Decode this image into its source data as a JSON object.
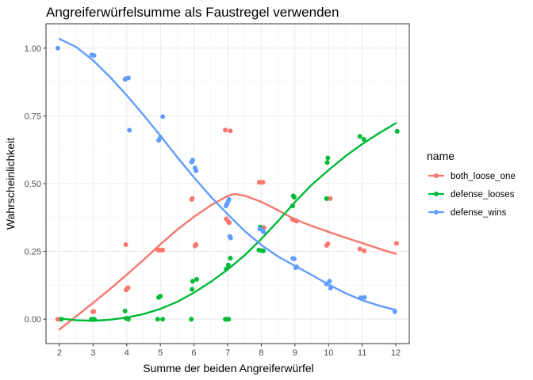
{
  "chart_data": {
    "type": "scatter",
    "title": "Angreiferwürfelsumme als Faustregel verwenden",
    "xlabel": "Summe der beiden Angreiferwürfel",
    "ylabel": "Wahrscheinlichkeit",
    "xlim": [
      1.6,
      12.4
    ],
    "ylim": [
      -0.09,
      1.09
    ],
    "x_ticks": [
      2,
      3,
      4,
      5,
      6,
      7,
      8,
      9,
      10,
      11,
      12
    ],
    "x_tick_labels": [
      "2",
      "3",
      "4",
      "5",
      "6",
      "7",
      "8",
      "9",
      "10",
      "11",
      "12"
    ],
    "y_ticks": [
      0.0,
      0.25,
      0.5,
      0.75,
      1.0
    ],
    "y_tick_labels": [
      "0.00",
      "0.25",
      "0.50",
      "0.75",
      "1.00"
    ],
    "grid": true,
    "theme": "bw",
    "legend": {
      "title": "name",
      "position": "right",
      "entries": [
        "both_loose_one",
        "defense_looses",
        "defense_wins"
      ]
    },
    "series": [
      {
        "name": "both_loose_one",
        "color": "#F8766D",
        "points": [
          [
            1.95,
            0.0
          ],
          [
            2.0,
            0.0
          ],
          [
            2.99,
            0.028
          ],
          [
            3.02,
            0.028
          ],
          [
            3.97,
            0.275
          ],
          [
            3.98,
            0.108
          ],
          [
            4.01,
            0.113
          ],
          [
            4.04,
            0.116
          ],
          [
            4.93,
            0.255
          ],
          [
            4.97,
            0.255
          ],
          [
            5.03,
            0.255
          ],
          [
            5.07,
            0.255
          ],
          [
            5.93,
            0.442
          ],
          [
            5.95,
            0.445
          ],
          [
            6.03,
            0.27
          ],
          [
            6.06,
            0.275
          ],
          [
            6.93,
            0.698
          ],
          [
            6.96,
            0.37
          ],
          [
            7.02,
            0.36
          ],
          [
            7.05,
            0.356
          ],
          [
            7.08,
            0.695
          ],
          [
            7.94,
            0.505
          ],
          [
            7.97,
            0.505
          ],
          [
            8.05,
            0.505
          ],
          [
            8.08,
            0.338
          ],
          [
            8.93,
            0.368
          ],
          [
            8.96,
            0.366
          ],
          [
            9.02,
            0.364
          ],
          [
            9.05,
            0.362
          ],
          [
            9.94,
            0.272
          ],
          [
            9.98,
            0.278
          ],
          [
            10.05,
            0.445
          ],
          [
            10.93,
            0.259
          ],
          [
            11.06,
            0.252
          ],
          [
            12.02,
            0.28
          ]
        ],
        "trend": [
          [
            2.0,
            -0.038
          ],
          [
            2.5,
            0.011
          ],
          [
            3.0,
            0.06
          ],
          [
            3.5,
            0.111
          ],
          [
            4.0,
            0.164
          ],
          [
            4.5,
            0.219
          ],
          [
            5.0,
            0.276
          ],
          [
            5.5,
            0.33
          ],
          [
            6.0,
            0.378
          ],
          [
            6.5,
            0.42
          ],
          [
            7.0,
            0.455
          ],
          [
            7.2,
            0.462
          ],
          [
            7.5,
            0.456
          ],
          [
            8.0,
            0.433
          ],
          [
            8.5,
            0.402
          ],
          [
            9.0,
            0.368
          ],
          [
            9.5,
            0.344
          ],
          [
            10.0,
            0.322
          ],
          [
            10.5,
            0.301
          ],
          [
            11.0,
            0.281
          ],
          [
            11.5,
            0.26
          ],
          [
            12.0,
            0.241
          ]
        ]
      },
      {
        "name": "defense_looses",
        "color": "#00BA38",
        "points": [
          [
            2.06,
            0.0
          ],
          [
            2.95,
            0.0
          ],
          [
            3.0,
            0.0
          ],
          [
            3.04,
            0.0
          ],
          [
            3.95,
            0.03
          ],
          [
            3.98,
            0.003
          ],
          [
            4.02,
            0.003
          ],
          [
            4.05,
            0.0
          ],
          [
            4.92,
            0.0
          ],
          [
            4.95,
            0.08
          ],
          [
            5.0,
            0.085
          ],
          [
            5.07,
            0.0
          ],
          [
            5.92,
            0.0
          ],
          [
            5.94,
            0.11
          ],
          [
            5.96,
            0.14
          ],
          [
            6.08,
            0.147
          ],
          [
            6.93,
            0.0
          ],
          [
            6.95,
            0.0
          ],
          [
            6.98,
            0.0
          ],
          [
            7.03,
            0.0
          ],
          [
            6.96,
            0.185
          ],
          [
            7.02,
            0.2
          ],
          [
            7.08,
            0.225
          ],
          [
            7.93,
            0.255
          ],
          [
            7.97,
            0.34
          ],
          [
            8.02,
            0.253
          ],
          [
            8.06,
            0.252
          ],
          [
            8.93,
            0.418
          ],
          [
            8.95,
            0.455
          ],
          [
            8.98,
            0.45
          ],
          [
            9.94,
            0.445
          ],
          [
            9.96,
            0.578
          ],
          [
            9.98,
            0.595
          ],
          [
            10.93,
            0.674
          ],
          [
            11.05,
            0.664
          ],
          [
            12.04,
            0.693
          ]
        ],
        "trend": [
          [
            2.0,
            0.003
          ],
          [
            2.5,
            -0.004
          ],
          [
            3.0,
            -0.006
          ],
          [
            3.5,
            -0.002
          ],
          [
            4.0,
            0.006
          ],
          [
            4.5,
            0.019
          ],
          [
            5.0,
            0.038
          ],
          [
            5.5,
            0.064
          ],
          [
            6.0,
            0.098
          ],
          [
            6.5,
            0.138
          ],
          [
            7.0,
            0.183
          ],
          [
            7.5,
            0.235
          ],
          [
            8.0,
            0.296
          ],
          [
            8.5,
            0.362
          ],
          [
            9.0,
            0.432
          ],
          [
            9.5,
            0.496
          ],
          [
            10.0,
            0.55
          ],
          [
            10.5,
            0.601
          ],
          [
            11.0,
            0.646
          ],
          [
            11.5,
            0.686
          ],
          [
            12.0,
            0.723
          ]
        ]
      },
      {
        "name": "defense_wins",
        "color": "#619CFF",
        "points": [
          [
            1.95,
            1.0
          ],
          [
            2.96,
            0.975
          ],
          [
            3.03,
            0.973
          ],
          [
            3.95,
            0.885
          ],
          [
            3.98,
            0.888
          ],
          [
            4.05,
            0.89
          ],
          [
            4.08,
            0.697
          ],
          [
            4.95,
            0.66
          ],
          [
            5.0,
            0.67
          ],
          [
            5.07,
            0.747
          ],
          [
            5.93,
            0.58
          ],
          [
            5.96,
            0.587
          ],
          [
            6.03,
            0.558
          ],
          [
            6.06,
            0.548
          ],
          [
            6.95,
            0.418
          ],
          [
            6.98,
            0.425
          ],
          [
            7.02,
            0.435
          ],
          [
            7.04,
            0.442
          ],
          [
            7.07,
            0.305
          ],
          [
            7.09,
            0.3
          ],
          [
            7.96,
            0.333
          ],
          [
            8.04,
            0.327
          ],
          [
            8.07,
            0.322
          ],
          [
            8.94,
            0.224
          ],
          [
            8.98,
            0.223
          ],
          [
            9.02,
            0.19
          ],
          [
            9.05,
            0.193
          ],
          [
            9.94,
            0.13
          ],
          [
            10.03,
            0.14
          ],
          [
            10.06,
            0.115
          ],
          [
            10.95,
            0.079
          ],
          [
            11.07,
            0.08
          ],
          [
            11.97,
            0.028
          ]
        ],
        "trend": [
          [
            2.0,
            1.034
          ],
          [
            2.5,
            1.004
          ],
          [
            3.0,
            0.955
          ],
          [
            3.5,
            0.894
          ],
          [
            4.0,
            0.826
          ],
          [
            4.5,
            0.753
          ],
          [
            5.0,
            0.677
          ],
          [
            5.5,
            0.598
          ],
          [
            6.0,
            0.523
          ],
          [
            6.5,
            0.452
          ],
          [
            7.0,
            0.387
          ],
          [
            7.5,
            0.326
          ],
          [
            8.0,
            0.274
          ],
          [
            8.5,
            0.231
          ],
          [
            9.0,
            0.197
          ],
          [
            9.5,
            0.163
          ],
          [
            10.0,
            0.128
          ],
          [
            10.5,
            0.096
          ],
          [
            11.0,
            0.07
          ],
          [
            11.5,
            0.05
          ],
          [
            12.0,
            0.034
          ]
        ]
      }
    ]
  }
}
